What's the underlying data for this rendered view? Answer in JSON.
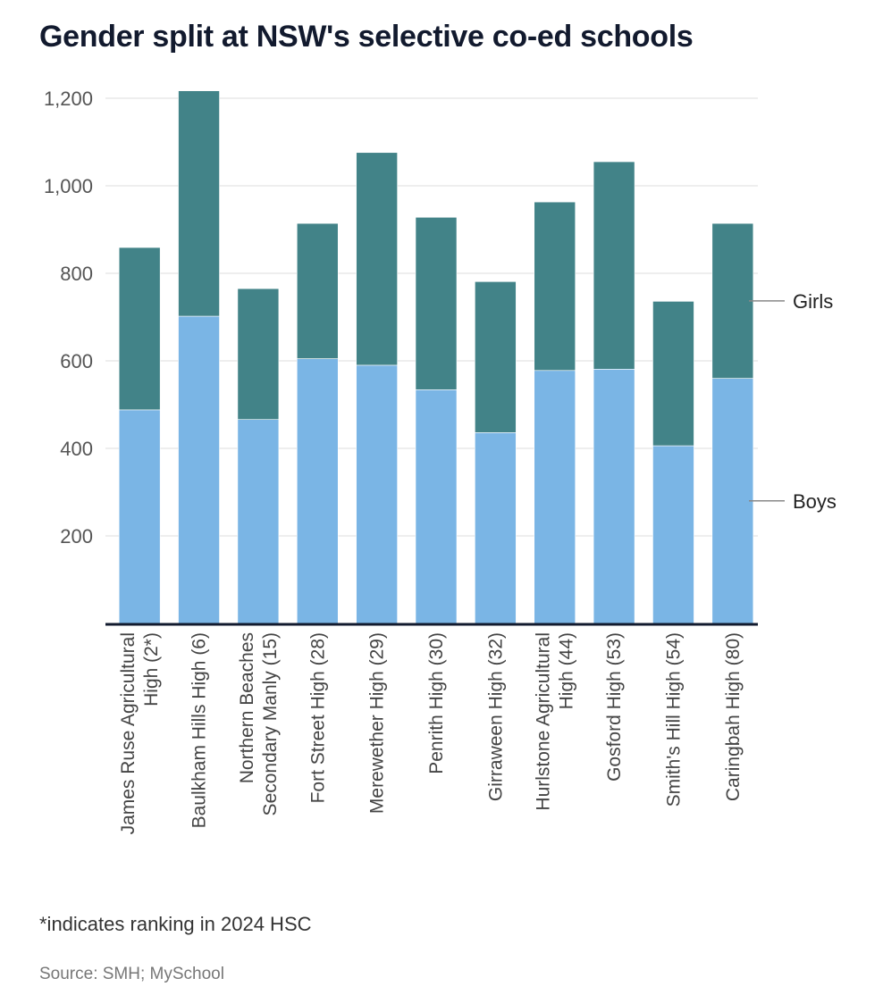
{
  "chart_data": {
    "type": "bar",
    "stacked": true,
    "title": "Gender split at NSW's selective co-ed schools",
    "categories": [
      [
        "James Ruse Agricultural",
        "High (2*)"
      ],
      [
        "Baulkham Hills High (6)"
      ],
      [
        "Northern Beaches",
        "Secondary Manly (15)"
      ],
      [
        "Fort Street High (28)"
      ],
      [
        "Merewether High (29)"
      ],
      [
        "Penrith High (30)"
      ],
      [
        "Girraween High (32)"
      ],
      [
        "Hurlstone Agricultural",
        "High (44)"
      ],
      [
        "Gosford High (53)"
      ],
      [
        "Smith's Hill High (54)"
      ],
      [
        "Caringbah High (80)"
      ]
    ],
    "series": [
      {
        "name": "Boys",
        "color": "#7ab5e5",
        "values": [
          488,
          702,
          466,
          605,
          590,
          534,
          436,
          578,
          581,
          406,
          560
        ]
      },
      {
        "name": "Girls",
        "color": "#428388",
        "values": [
          371,
          515,
          299,
          309,
          486,
          394,
          345,
          385,
          474,
          330,
          354
        ]
      }
    ],
    "yticks": [
      "200",
      "400",
      "600",
      "800",
      "1,000",
      "1,200"
    ],
    "ytick_values": [
      200,
      400,
      600,
      800,
      1000,
      1200
    ],
    "ylim": [
      0,
      1200
    ],
    "grid": true,
    "legend": "right, inline labels"
  },
  "footnote": "*indicates ranking in 2024 HSC",
  "source": "Source: SMH; MySchool"
}
